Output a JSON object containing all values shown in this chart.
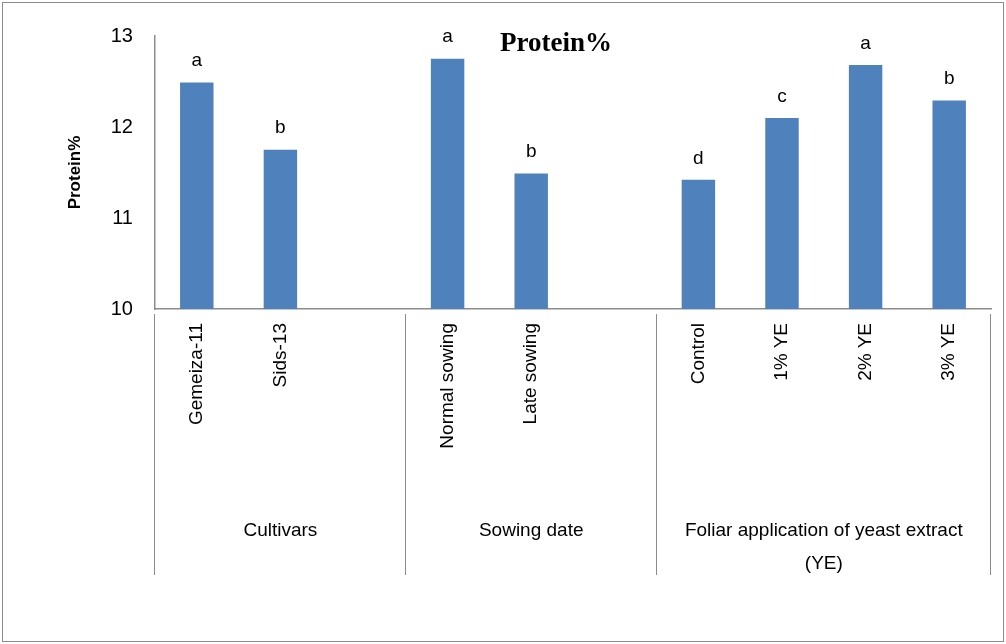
{
  "chart_data": {
    "type": "bar",
    "title": "Protein%",
    "ylabel": "Protein%",
    "categories": [
      "Gemeiza-11",
      "Sids-13",
      null,
      "Normal sowing",
      "Late sowing",
      null,
      "Control",
      "1% YE",
      "2% YE",
      "3% YE"
    ],
    "values": [
      12.49,
      11.75,
      null,
      12.75,
      11.49,
      null,
      11.42,
      12.1,
      12.68,
      12.29
    ],
    "value_labels": [
      "a",
      "b",
      null,
      "a",
      "b",
      null,
      "d",
      "c",
      "a",
      "b"
    ],
    "color": "#4f81bd",
    "ylim": [
      10,
      13
    ],
    "yticks": [
      10,
      11,
      12,
      13
    ],
    "annotations": [
      "Cultivars",
      "Sowing date",
      "Foliar application of yeast extract (YE)"
    ]
  }
}
